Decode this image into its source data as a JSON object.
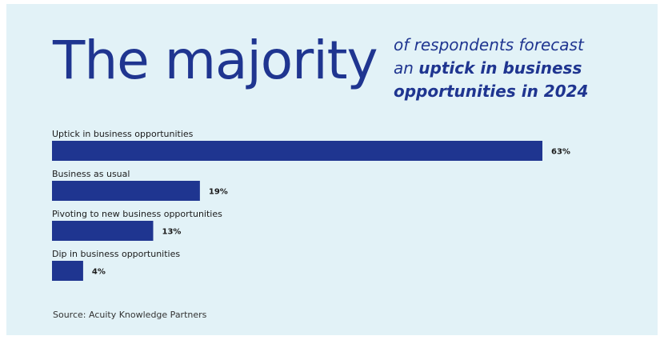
{
  "header": {
    "title": "The majority",
    "subtitle_line1": "of respondents forecast",
    "subtitle_line2_lead": "an ",
    "subtitle_line2_bold": "uptick in business",
    "subtitle_line3_bold": "opportunities in 2024"
  },
  "source": "Source: Acuity Knowledge Partners",
  "colors": {
    "background": "#e2f2f7",
    "bar": "#1f3590",
    "title": "#1f3590"
  },
  "chart_data": {
    "type": "bar",
    "orientation": "horizontal",
    "categories": [
      "Uptick in business opportunities",
      "Business as usual",
      "Pivoting to new business opportunities",
      "Dip in business opportunities"
    ],
    "values": [
      63,
      19,
      13,
      4
    ],
    "value_labels": [
      "63%",
      "19%",
      "13%",
      "4%"
    ],
    "unit": "%",
    "xlim": [
      0,
      63
    ],
    "grid": false,
    "legend": "none"
  }
}
